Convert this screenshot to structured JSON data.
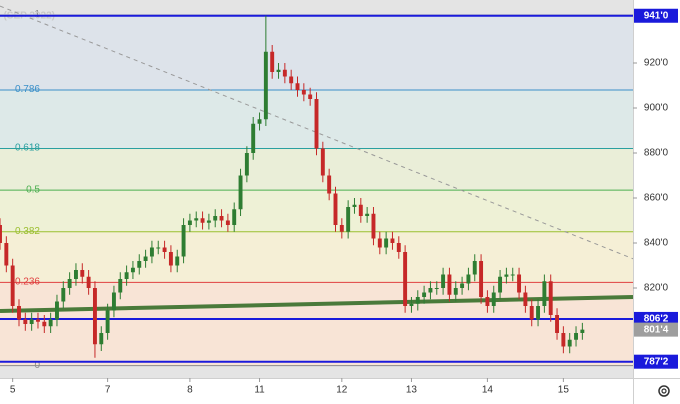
{
  "chart_data": {
    "type": "candlestick",
    "watermark": "S (SEP 2022)",
    "xlim": [
      0,
      100
    ],
    "ylim": [
      780,
      948
    ],
    "yticks": [
      {
        "value": 920,
        "label": "920'0"
      },
      {
        "value": 900,
        "label": "900'0"
      },
      {
        "value": 880,
        "label": "880'0"
      },
      {
        "value": 860,
        "label": "860'0"
      },
      {
        "value": 840,
        "label": "840'0"
      },
      {
        "value": 820,
        "label": "820'0"
      }
    ],
    "xticks": [
      {
        "value": 2,
        "label": "5"
      },
      {
        "value": 17,
        "label": "7"
      },
      {
        "value": 30,
        "label": "8"
      },
      {
        "value": 41,
        "label": "11"
      },
      {
        "value": 54,
        "label": "12"
      },
      {
        "value": 65,
        "label": "13"
      },
      {
        "value": 77,
        "label": "14"
      },
      {
        "value": 89,
        "label": "15"
      }
    ],
    "up_color": "#2e7d32",
    "down_color": "#c62828",
    "candles": {
      "open": [
        848,
        840,
        830,
        812,
        806,
        804,
        806,
        805,
        803,
        806,
        814,
        820,
        824,
        828,
        825,
        820,
        795,
        800,
        810,
        818,
        824,
        827,
        829,
        832,
        834,
        838,
        838,
        836,
        830,
        834,
        848,
        850,
        851,
        849,
        850,
        852,
        850,
        848,
        855,
        870,
        880,
        893,
        895,
        925,
        916,
        917,
        914,
        911,
        908,
        906,
        904,
        882,
        870,
        862,
        848,
        845,
        856,
        857,
        852,
        853,
        842,
        838,
        842,
        840,
        836,
        812,
        813,
        816,
        818,
        820,
        820,
        826,
        817,
        820,
        822,
        826,
        832,
        816,
        812,
        818,
        825,
        826,
        826,
        818,
        812,
        806,
        812,
        823,
        808,
        800,
        794,
        797,
        800
      ],
      "high": [
        851,
        843,
        833,
        815,
        809,
        809,
        809,
        808,
        809,
        817,
        823,
        827,
        831,
        831,
        828,
        823,
        803,
        813,
        821,
        827,
        830,
        832,
        835,
        837,
        841,
        841,
        841,
        839,
        837,
        851,
        853,
        854,
        854,
        853,
        855,
        855,
        853,
        858,
        873,
        883,
        896,
        898,
        941,
        928,
        920,
        920,
        917,
        914,
        911,
        909,
        907,
        885,
        873,
        865,
        851,
        859,
        860,
        860,
        856,
        856,
        845,
        845,
        845,
        843,
        839,
        816,
        819,
        821,
        823,
        823,
        829,
        829,
        823,
        825,
        829,
        835,
        835,
        819,
        821,
        828,
        829,
        829,
        829,
        821,
        815,
        815,
        826,
        826,
        811,
        803,
        800,
        803,
        804.5
      ],
      "low": [
        837,
        827,
        809,
        803,
        801,
        801,
        802,
        800,
        800,
        803,
        811,
        817,
        821,
        822,
        817,
        789,
        792,
        797,
        807,
        815,
        821,
        824,
        826,
        829,
        831,
        835,
        833,
        827,
        827,
        831,
        845,
        847,
        846,
        846,
        847,
        847,
        845,
        845,
        852,
        867,
        877,
        890,
        892,
        913,
        913,
        911,
        908,
        905,
        903,
        901,
        879,
        867,
        859,
        845,
        842,
        842,
        853,
        849,
        849,
        839,
        835,
        835,
        837,
        833,
        809,
        809,
        810,
        813,
        815,
        817,
        817,
        814,
        814,
        817,
        819,
        823,
        813,
        809,
        809,
        815,
        822,
        823,
        815,
        809,
        803,
        803,
        809,
        805,
        797,
        791,
        791,
        794,
        797
      ],
      "close": [
        840,
        830,
        812,
        806,
        804,
        806,
        805,
        803,
        806,
        814,
        820,
        824,
        828,
        825,
        820,
        795,
        800,
        810,
        818,
        824,
        827,
        829,
        832,
        834,
        838,
        838,
        836,
        830,
        834,
        848,
        850,
        851,
        849,
        850,
        852,
        850,
        848,
        855,
        870,
        880,
        893,
        895,
        925,
        916,
        917,
        914,
        911,
        908,
        906,
        904,
        882,
        870,
        862,
        848,
        845,
        856,
        857,
        852,
        853,
        842,
        838,
        842,
        840,
        836,
        812,
        813,
        816,
        818,
        820,
        820,
        826,
        817,
        820,
        822,
        826,
        832,
        816,
        812,
        818,
        825,
        826,
        826,
        818,
        812,
        806,
        812,
        823,
        808,
        800,
        794,
        797,
        800,
        801.5
      ]
    },
    "fib": {
      "levels": [
        {
          "label": "1",
          "price": 941.3,
          "color": "#8a8a8a"
        },
        {
          "label": "0.786",
          "price": 908,
          "color": "#3a8fc8"
        },
        {
          "label": "0.618",
          "price": 882,
          "color": "#2aa0a0"
        },
        {
          "label": "0.5",
          "price": 863.5,
          "color": "#4caf50"
        },
        {
          "label": "0.382",
          "price": 845,
          "color": "#9bbf30"
        },
        {
          "label": "0.236",
          "price": 822.5,
          "color": "#e04040"
        },
        {
          "label": "0",
          "price": 785.5,
          "color": "#8a8a8a"
        }
      ],
      "band_colors": [
        "#dde3ea",
        "#dde9e8",
        "#eaeed8",
        "#eef1d6",
        "#f5efd6",
        "#f8e4d6"
      ]
    },
    "price_lines": [
      {
        "value": 941,
        "label": "941'0",
        "color": "#1a1adb"
      },
      {
        "value": 806.25,
        "label": "806'2",
        "color": "#1a1adb"
      },
      {
        "value": 787.25,
        "label": "787'2",
        "color": "#1a1adb"
      }
    ],
    "last_price": {
      "value": 801.5,
      "label": "801'4",
      "color": "#9e9e9e"
    },
    "trendlines": [
      {
        "from": [
          0,
          809.8
        ],
        "to": [
          100,
          816
        ],
        "color": "#4a7a3a",
        "width": 4,
        "dashed": false
      },
      {
        "from": [
          0,
          945.3
        ],
        "to": [
          100,
          833
        ],
        "color": "#999999",
        "width": 1,
        "dashed": true
      }
    ]
  }
}
